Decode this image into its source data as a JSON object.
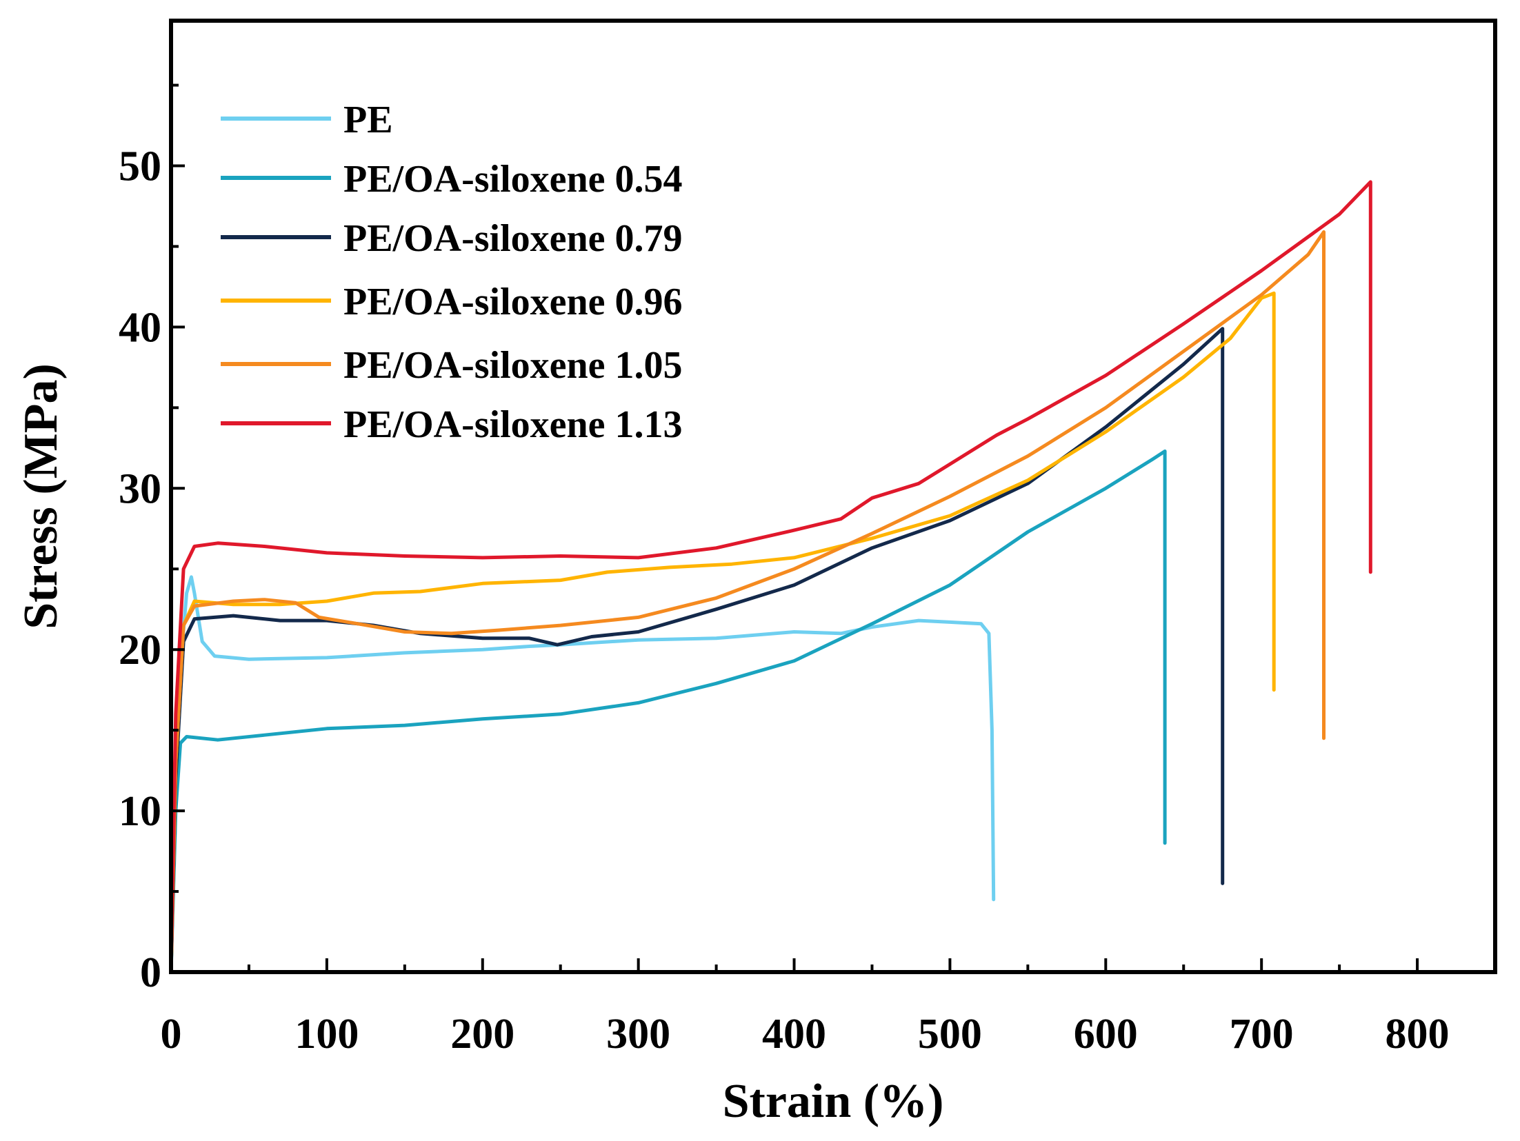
{
  "chart_data": {
    "type": "line",
    "title": "",
    "xlabel": "Strain (%)",
    "ylabel": "Stress (MPa)",
    "xlim": [
      0,
      850
    ],
    "ylim": [
      0,
      59
    ],
    "xticks": [
      0,
      100,
      200,
      300,
      400,
      500,
      600,
      700,
      800
    ],
    "yticks": [
      0,
      10,
      20,
      30,
      40,
      50
    ],
    "xtick_labels": [
      "0",
      "100",
      "200",
      "300",
      "400",
      "500",
      "600",
      "700",
      "800"
    ],
    "ytick_labels": [
      "0",
      "10",
      "20",
      "30",
      "40",
      "50"
    ],
    "x_minor_step": 50,
    "y_minor_step": 5,
    "grid": false,
    "legend_position": "top-left",
    "series": [
      {
        "name": "PE",
        "color": "#6ECFF0",
        "points": [
          [
            0,
            0
          ],
          [
            3,
            12
          ],
          [
            7,
            20
          ],
          [
            10,
            23.5
          ],
          [
            13,
            24.5
          ],
          [
            15,
            23.5
          ],
          [
            20,
            20.5
          ],
          [
            28,
            19.6
          ],
          [
            50,
            19.4
          ],
          [
            100,
            19.5
          ],
          [
            150,
            19.8
          ],
          [
            200,
            20
          ],
          [
            230,
            20.2
          ],
          [
            250,
            20.3
          ],
          [
            300,
            20.6
          ],
          [
            350,
            20.7
          ],
          [
            400,
            21.1
          ],
          [
            430,
            21.0
          ],
          [
            450,
            21.4
          ],
          [
            480,
            21.8
          ],
          [
            500,
            21.7
          ],
          [
            520,
            21.6
          ],
          [
            525,
            21.0
          ],
          [
            527,
            15.0
          ],
          [
            528,
            4.5
          ]
        ]
      },
      {
        "name": "PE/OA-siloxene 0.54",
        "color": "#1AA3BF",
        "points": [
          [
            0,
            0
          ],
          [
            3,
            10
          ],
          [
            6,
            14.2
          ],
          [
            10,
            14.6
          ],
          [
            30,
            14.4
          ],
          [
            60,
            14.7
          ],
          [
            100,
            15.1
          ],
          [
            150,
            15.3
          ],
          [
            200,
            15.7
          ],
          [
            250,
            16.0
          ],
          [
            300,
            16.7
          ],
          [
            350,
            17.9
          ],
          [
            400,
            19.3
          ],
          [
            450,
            21.6
          ],
          [
            500,
            24.0
          ],
          [
            550,
            27.3
          ],
          [
            600,
            30.0
          ],
          [
            630,
            31.8
          ],
          [
            638,
            32.3
          ],
          [
            638,
            20.0
          ],
          [
            638,
            8.0
          ]
        ]
      },
      {
        "name": "PE/OA-siloxene 0.79",
        "color": "#13294B",
        "points": [
          [
            0,
            0
          ],
          [
            3,
            12
          ],
          [
            8,
            20.5
          ],
          [
            15,
            21.9
          ],
          [
            40,
            22.1
          ],
          [
            70,
            21.8
          ],
          [
            100,
            21.8
          ],
          [
            130,
            21.5
          ],
          [
            160,
            21.0
          ],
          [
            200,
            20.7
          ],
          [
            230,
            20.7
          ],
          [
            248,
            20.3
          ],
          [
            270,
            20.8
          ],
          [
            300,
            21.1
          ],
          [
            350,
            22.5
          ],
          [
            400,
            24.0
          ],
          [
            450,
            26.3
          ],
          [
            500,
            28.0
          ],
          [
            550,
            30.3
          ],
          [
            600,
            33.8
          ],
          [
            650,
            37.7
          ],
          [
            675,
            39.9
          ],
          [
            675,
            25.0
          ],
          [
            675,
            5.5
          ]
        ]
      },
      {
        "name": "PE/OA-siloxene 0.96",
        "color": "#FFB400",
        "points": [
          [
            0,
            0
          ],
          [
            3,
            13
          ],
          [
            8,
            21.5
          ],
          [
            15,
            23.0
          ],
          [
            40,
            22.8
          ],
          [
            70,
            22.8
          ],
          [
            100,
            23.0
          ],
          [
            130,
            23.5
          ],
          [
            160,
            23.6
          ],
          [
            200,
            24.1
          ],
          [
            250,
            24.3
          ],
          [
            280,
            24.8
          ],
          [
            320,
            25.1
          ],
          [
            360,
            25.3
          ],
          [
            400,
            25.7
          ],
          [
            450,
            26.9
          ],
          [
            500,
            28.3
          ],
          [
            550,
            30.5
          ],
          [
            600,
            33.5
          ],
          [
            650,
            36.9
          ],
          [
            680,
            39.3
          ],
          [
            700,
            41.8
          ],
          [
            708,
            42.1
          ],
          [
            708,
            30.0
          ],
          [
            708,
            17.5
          ]
        ]
      },
      {
        "name": "PE/OA-siloxene 1.05",
        "color": "#F58A1F",
        "points": [
          [
            0,
            0
          ],
          [
            3,
            13
          ],
          [
            8,
            21.5
          ],
          [
            15,
            22.7
          ],
          [
            40,
            23.0
          ],
          [
            60,
            23.1
          ],
          [
            80,
            22.9
          ],
          [
            95,
            22.0
          ],
          [
            120,
            21.6
          ],
          [
            150,
            21.1
          ],
          [
            180,
            21.0
          ],
          [
            210,
            21.2
          ],
          [
            250,
            21.5
          ],
          [
            300,
            22.0
          ],
          [
            350,
            23.2
          ],
          [
            400,
            25.0
          ],
          [
            450,
            27.2
          ],
          [
            500,
            29.5
          ],
          [
            550,
            32.0
          ],
          [
            600,
            35.0
          ],
          [
            650,
            38.5
          ],
          [
            700,
            42.0
          ],
          [
            730,
            44.5
          ],
          [
            740,
            45.9
          ],
          [
            740,
            30.0
          ],
          [
            740,
            14.5
          ]
        ]
      },
      {
        "name": "PE/OA-siloxene 1.13",
        "color": "#E0182B",
        "points": [
          [
            0,
            0
          ],
          [
            3,
            16
          ],
          [
            8,
            25
          ],
          [
            15,
            26.4
          ],
          [
            30,
            26.6
          ],
          [
            60,
            26.4
          ],
          [
            100,
            26.0
          ],
          [
            150,
            25.8
          ],
          [
            200,
            25.7
          ],
          [
            250,
            25.8
          ],
          [
            300,
            25.7
          ],
          [
            350,
            26.3
          ],
          [
            400,
            27.4
          ],
          [
            430,
            28.1
          ],
          [
            450,
            29.4
          ],
          [
            480,
            30.3
          ],
          [
            500,
            31.5
          ],
          [
            530,
            33.3
          ],
          [
            550,
            34.3
          ],
          [
            600,
            37.0
          ],
          [
            650,
            40.2
          ],
          [
            700,
            43.5
          ],
          [
            750,
            47.0
          ],
          [
            770,
            49.0
          ],
          [
            770,
            37.0
          ],
          [
            770,
            24.8
          ]
        ]
      }
    ]
  }
}
